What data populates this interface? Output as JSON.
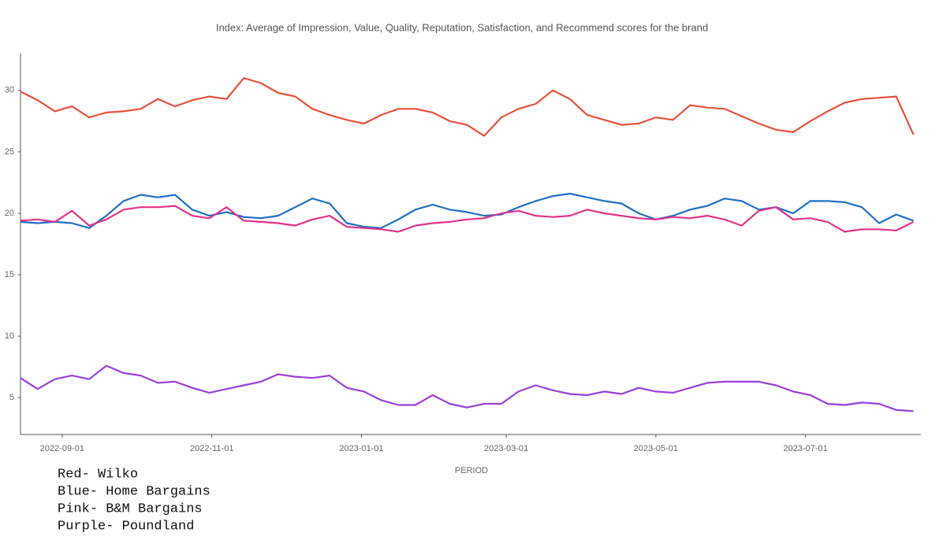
{
  "chart_data": {
    "type": "line",
    "title": "Index: Average of Impression, Value, Quality, Reputation, Satisfaction, and Recommend scores for the brand",
    "x_label": "PERIOD",
    "x": [
      "2022-08-15",
      "2022-08-22",
      "2022-08-29",
      "2022-09-05",
      "2022-09-12",
      "2022-09-19",
      "2022-09-26",
      "2022-10-03",
      "2022-10-10",
      "2022-10-17",
      "2022-10-24",
      "2022-10-31",
      "2022-11-07",
      "2022-11-14",
      "2022-11-21",
      "2022-11-28",
      "2022-12-05",
      "2022-12-12",
      "2022-12-19",
      "2022-12-26",
      "2023-01-02",
      "2023-01-09",
      "2023-01-16",
      "2023-01-23",
      "2023-01-30",
      "2023-02-06",
      "2023-02-13",
      "2023-02-20",
      "2023-02-27",
      "2023-03-06",
      "2023-03-13",
      "2023-03-20",
      "2023-03-27",
      "2023-04-03",
      "2023-04-10",
      "2023-04-17",
      "2023-04-24",
      "2023-05-01",
      "2023-05-08",
      "2023-05-15",
      "2023-05-22",
      "2023-05-29",
      "2023-06-05",
      "2023-06-12",
      "2023-06-19",
      "2023-06-26",
      "2023-07-03",
      "2023-07-10",
      "2023-07-17",
      "2023-07-24",
      "2023-07-31",
      "2023-08-07",
      "2023-08-14"
    ],
    "series": [
      {
        "name": "Red- Wilko",
        "color": "#e8513a",
        "values": [
          29.9,
          29.2,
          28.3,
          28.7,
          27.8,
          28.2,
          28.3,
          28.5,
          29.3,
          28.7,
          29.2,
          29.5,
          29.3,
          31.0,
          30.6,
          29.8,
          29.5,
          28.5,
          28.0,
          27.6,
          27.3,
          28.0,
          28.5,
          28.5,
          28.2,
          27.5,
          27.2,
          26.3,
          27.8,
          28.5,
          28.9,
          30.0,
          29.3,
          28.0,
          27.6,
          27.2,
          27.3,
          27.8,
          27.6,
          28.8,
          28.6,
          28.5,
          27.9,
          27.3,
          26.8,
          26.6,
          27.5,
          28.3,
          29.0,
          29.3,
          29.4,
          29.5,
          26.4
        ]
      },
      {
        "name": "Blue- Home Bargains",
        "color": "#1f6fc5",
        "values": [
          19.3,
          19.2,
          19.3,
          19.2,
          18.8,
          19.8,
          21.0,
          21.5,
          21.3,
          21.5,
          20.3,
          19.8,
          20.1,
          19.7,
          19.6,
          19.8,
          20.5,
          21.2,
          20.8,
          19.2,
          18.9,
          18.8,
          19.5,
          20.3,
          20.7,
          20.3,
          20.1,
          19.8,
          19.9,
          20.5,
          21.0,
          21.4,
          21.6,
          21.3,
          21.0,
          20.8,
          20.0,
          19.5,
          19.8,
          20.3,
          20.6,
          21.2,
          21.0,
          20.3,
          20.5,
          20.0,
          21.0,
          21.0,
          20.9,
          20.5,
          19.2,
          19.9,
          19.4
        ]
      },
      {
        "name": "Pink- B&M Bargains",
        "color": "#e0338a",
        "values": [
          19.4,
          19.5,
          19.3,
          20.2,
          19.0,
          19.5,
          20.3,
          20.5,
          20.5,
          20.6,
          19.8,
          19.6,
          20.5,
          19.4,
          19.3,
          19.2,
          19.0,
          19.5,
          19.8,
          18.9,
          18.8,
          18.7,
          18.5,
          19.0,
          19.2,
          19.3,
          19.5,
          19.6,
          20.0,
          20.2,
          19.8,
          19.7,
          19.8,
          20.3,
          20.0,
          19.8,
          19.6,
          19.5,
          19.7,
          19.6,
          19.8,
          19.5,
          19.0,
          20.2,
          20.5,
          19.5,
          19.6,
          19.3,
          18.5,
          18.7,
          18.7,
          18.6,
          19.3
        ]
      },
      {
        "name": "Purple- Poundland",
        "color": "#9b3fdc",
        "values": [
          6.6,
          5.7,
          6.5,
          6.8,
          6.5,
          7.6,
          7.0,
          6.8,
          6.2,
          6.3,
          5.8,
          5.4,
          5.7,
          6.0,
          6.3,
          6.9,
          6.7,
          6.6,
          6.8,
          5.8,
          5.5,
          4.8,
          4.4,
          4.4,
          5.2,
          4.5,
          4.2,
          4.5,
          4.5,
          5.5,
          6.0,
          5.6,
          5.3,
          5.2,
          5.5,
          5.3,
          5.8,
          5.5,
          5.4,
          5.8,
          6.2,
          6.3,
          6.3,
          6.3,
          6.0,
          5.5,
          5.2,
          4.5,
          4.4,
          4.6,
          4.5,
          4.0,
          3.9
        ]
      }
    ],
    "xlim": [
      "2022-08-15",
      "2023-08-17"
    ],
    "xticks": [
      "2022-09-01",
      "2022-11-01",
      "2023-01-01",
      "2023-03-01",
      "2023-05-01",
      "2023-07-01"
    ],
    "ylim": [
      2,
      33
    ],
    "yticks": [
      5,
      10,
      15,
      20,
      25,
      30
    ],
    "grid": false,
    "legend": "bottom-left"
  }
}
